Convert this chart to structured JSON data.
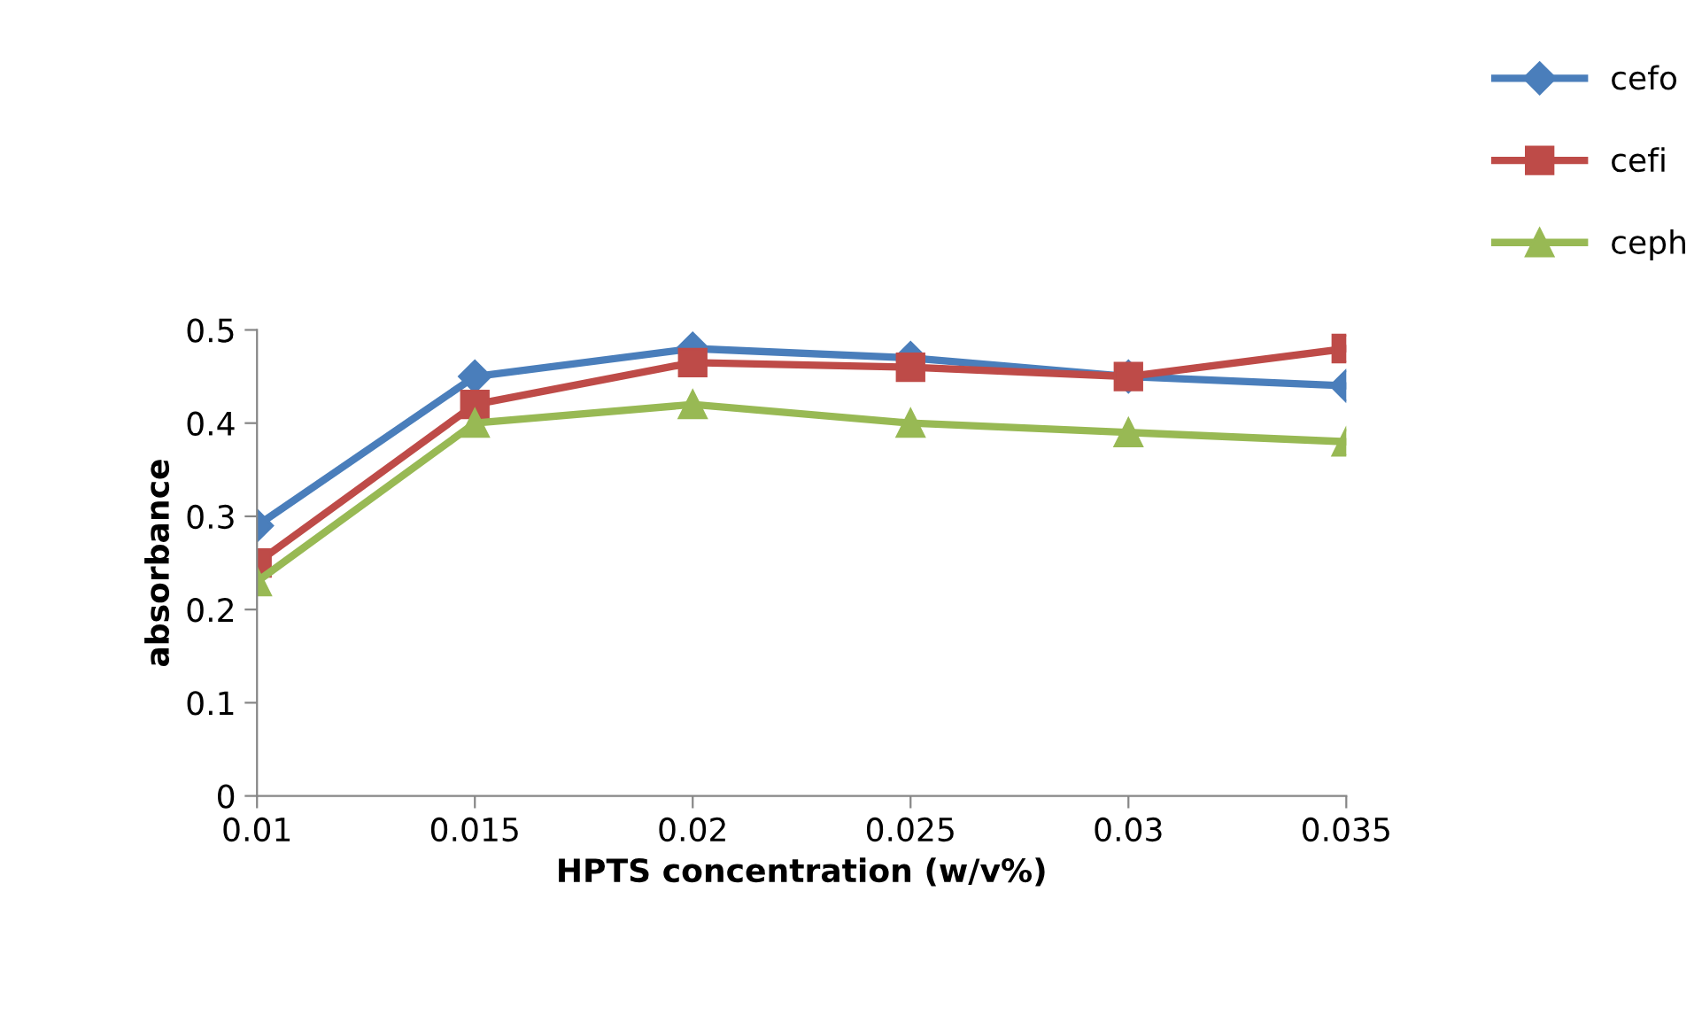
{
  "chart_data": {
    "type": "line",
    "xlabel": "HPTS concentration (w/v%)",
    "ylabel": "absorbance",
    "categories": [
      "0.01",
      "0.015",
      "0.02",
      "0.025",
      "0.03",
      "0.035"
    ],
    "series": [
      {
        "name": "cefo",
        "color": "#4a7ebb",
        "marker": "diamond",
        "values": [
          0.29,
          0.45,
          0.48,
          0.47,
          0.45,
          0.44
        ]
      },
      {
        "name": "cefi",
        "color": "#be4b48",
        "marker": "square",
        "values": [
          0.25,
          0.42,
          0.465,
          0.46,
          0.45,
          0.48
        ]
      },
      {
        "name": "ceph",
        "color": "#98b954",
        "marker": "triangle",
        "values": [
          0.23,
          0.4,
          0.42,
          0.4,
          0.39,
          0.38
        ]
      }
    ],
    "ylim": [
      0,
      0.5
    ],
    "yticks": [
      0,
      0.1,
      0.2,
      0.3,
      0.4,
      0.5
    ],
    "grid": false,
    "legend": "top right",
    "line_style": "solid"
  }
}
